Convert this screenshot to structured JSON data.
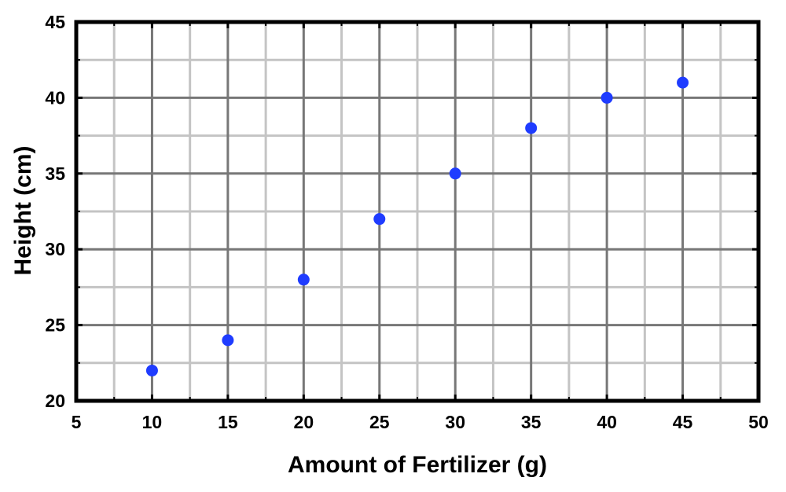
{
  "chart_data": {
    "type": "scatter",
    "title": "",
    "xlabel": "Amount of Fertilizer (g)",
    "ylabel": "Height (cm)",
    "xlim": [
      5,
      50
    ],
    "ylim": [
      20,
      45
    ],
    "x_ticks": [
      5,
      10,
      15,
      20,
      25,
      30,
      35,
      40,
      45,
      50
    ],
    "y_ticks": [
      20,
      25,
      30,
      35,
      40,
      45
    ],
    "x_minor_step": 2.5,
    "y_minor_step": 2.5,
    "grid": true,
    "series": [
      {
        "x": [
          10,
          15,
          20,
          25,
          30,
          35,
          40,
          45
        ],
        "y": [
          22,
          24,
          28,
          32,
          35,
          38,
          40,
          41
        ]
      }
    ],
    "colors": {
      "marker": "#1f3cff",
      "major_grid": "#777777",
      "minor_grid": "#c4c4c4",
      "frame": "#000000"
    }
  }
}
